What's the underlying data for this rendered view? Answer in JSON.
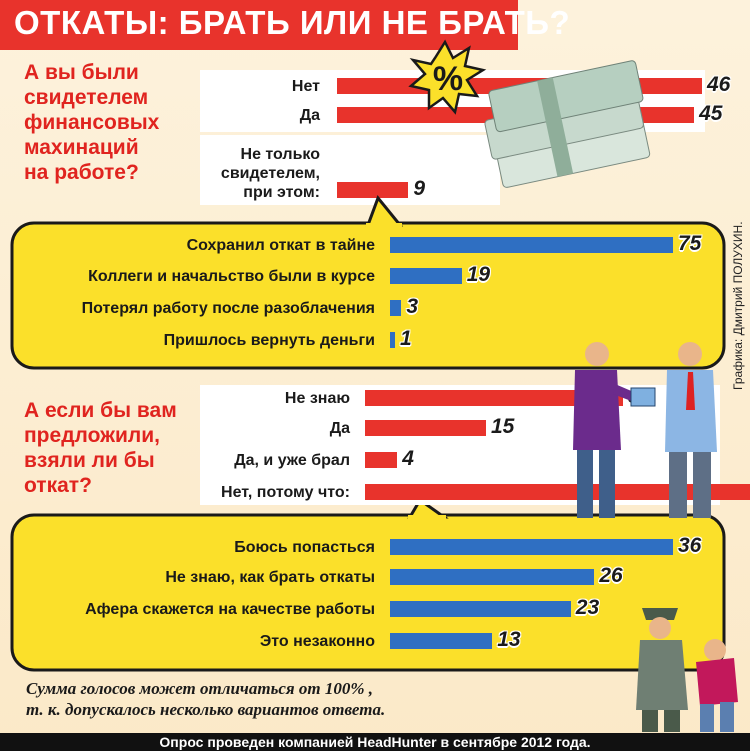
{
  "title": "ОТКАТЫ: БРАТЬ ИЛИ НЕ БРАТЬ?",
  "credit": "Графика: Дмитрий ПОЛУХИН.",
  "percent_badge": "%",
  "footnote": [
    "Сумма голосов может отличаться от 100% ,",
    "т. к. допускалось несколько вариантов ответа."
  ],
  "footer": "Опрос проведен компанией HeadHunter в сентябре 2012 года.",
  "colors": {
    "red": "#e8332c",
    "blue": "#2f6fc2",
    "yellow": "#fbe02a",
    "question": "#e0241f"
  },
  "chart_data": [
    {
      "type": "bar",
      "title": "А вы были свидетелем финансовых махинаций на работе?",
      "title_lines": [
        "А вы были",
        "свидетелем",
        "финансовых",
        "махинаций",
        "на работе?"
      ],
      "categories": [
        "Нет",
        "Да",
        "Не только свидетелем, при этом:"
      ],
      "label_lines": [
        [
          "Нет"
        ],
        [
          "Да"
        ],
        [
          "Не только",
          "свидетелем,",
          "при этом:"
        ]
      ],
      "values": [
        46,
        45,
        9
      ],
      "orientation": "horizontal",
      "color": "#e8332c"
    },
    {
      "type": "bar",
      "categories": [
        "Сохранил откат в тайне",
        "Коллеги и начальство были в курсе",
        "Потерял работу после разоблачения",
        "Пришлось вернуть деньги"
      ],
      "values": [
        75,
        19,
        3,
        1
      ],
      "orientation": "horizontal",
      "color": "#2f6fc2"
    },
    {
      "type": "bar",
      "title": "А если бы вам предложили, взяли ли бы откат?",
      "title_lines": [
        "А если бы вам",
        "предложили,",
        "взяли ли бы",
        "откат?"
      ],
      "categories": [
        "Не знаю",
        "Да",
        "Да, и уже брал",
        "Нет, потому что:"
      ],
      "values": [
        32,
        15,
        4,
        49
      ],
      "orientation": "horizontal",
      "color": "#e8332c"
    },
    {
      "type": "bar",
      "categories": [
        "Боюсь попасться",
        "Не знаю, как брать откаты",
        "Афера скажется на качестве работы",
        "Это незаконно"
      ],
      "values": [
        36,
        26,
        23,
        13
      ],
      "orientation": "horizontal",
      "color": "#2f6fc2"
    }
  ]
}
